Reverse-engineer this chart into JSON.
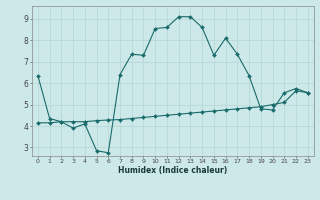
{
  "title": "",
  "xlabel": "Humidex (Indice chaleur)",
  "background_color": "#cde8e8",
  "grid_color": "#b8d8d8",
  "line_color": "#1a6b6b",
  "x_ticks": [
    0,
    1,
    2,
    3,
    4,
    5,
    6,
    7,
    8,
    9,
    10,
    11,
    12,
    13,
    14,
    15,
    16,
    17,
    18,
    19,
    20,
    21,
    22,
    23
  ],
  "y_ticks": [
    3,
    4,
    5,
    6,
    7,
    8,
    9
  ],
  "ylim": [
    2.6,
    9.6
  ],
  "xlim": [
    -0.5,
    23.5
  ],
  "curve1_x": [
    0,
    1,
    2,
    3,
    4,
    5,
    6,
    7,
    8,
    9,
    10,
    11,
    12,
    13,
    14,
    15,
    16,
    17,
    18,
    19,
    20,
    21,
    22,
    23
  ],
  "curve1_y": [
    6.35,
    4.35,
    4.2,
    3.9,
    4.1,
    2.85,
    2.75,
    6.4,
    7.35,
    7.3,
    8.55,
    8.6,
    9.1,
    9.1,
    8.6,
    7.3,
    8.1,
    7.35,
    6.35,
    4.8,
    4.75,
    5.55,
    5.75,
    5.55
  ],
  "curve2_x": [
    0,
    1,
    2,
    3,
    4,
    5,
    6,
    7,
    8,
    9,
    10,
    11,
    12,
    13,
    14,
    15,
    16,
    17,
    18,
    19,
    20,
    21,
    22,
    23
  ],
  "curve2_y": [
    4.15,
    4.15,
    4.2,
    4.2,
    4.2,
    4.25,
    4.28,
    4.3,
    4.35,
    4.4,
    4.45,
    4.5,
    4.55,
    4.6,
    4.65,
    4.7,
    4.75,
    4.8,
    4.85,
    4.9,
    5.0,
    5.1,
    5.65,
    5.55
  ]
}
